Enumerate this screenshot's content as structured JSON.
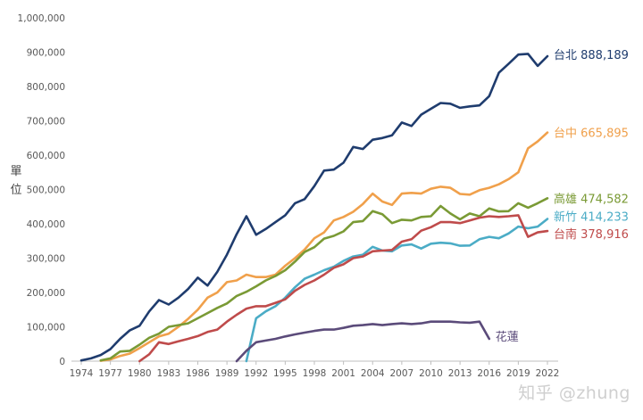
{
  "chart_data": {
    "type": "line",
    "title": "",
    "xlabel": "",
    "ylabel": "單位",
    "ylim": [
      0,
      1000000
    ],
    "yticks": [
      0,
      100000,
      200000,
      300000,
      400000,
      500000,
      600000,
      700000,
      800000,
      900000,
      1000000
    ],
    "xlim": [
      1974,
      2022
    ],
    "xticks": [
      1974,
      1977,
      1980,
      1983,
      1986,
      1989,
      1992,
      1995,
      1998,
      2001,
      2004,
      2007,
      2010,
      2013,
      2016,
      2019,
      2022
    ],
    "grid": false,
    "legend": "end-of-line labels",
    "series": [
      {
        "name": "台北",
        "end_label": "888,189",
        "color": "#1f3c6e",
        "points": [
          [
            1974,
            2000
          ],
          [
            1975,
            8000
          ],
          [
            1976,
            18000
          ],
          [
            1977,
            35000
          ],
          [
            1978,
            65000
          ],
          [
            1979,
            90000
          ],
          [
            1980,
            103000
          ],
          [
            1981,
            145000
          ],
          [
            1982,
            178000
          ],
          [
            1983,
            165000
          ],
          [
            1984,
            185000
          ],
          [
            1985,
            210000
          ],
          [
            1986,
            243000
          ],
          [
            1987,
            220000
          ],
          [
            1988,
            260000
          ],
          [
            1989,
            310000
          ],
          [
            1990,
            370000
          ],
          [
            1991,
            422000
          ],
          [
            1992,
            368000
          ],
          [
            1993,
            385000
          ],
          [
            1994,
            405000
          ],
          [
            1995,
            425000
          ],
          [
            1996,
            460000
          ],
          [
            1997,
            472000
          ],
          [
            1998,
            510000
          ],
          [
            1999,
            555000
          ],
          [
            2000,
            558000
          ],
          [
            2001,
            578000
          ],
          [
            2002,
            624000
          ],
          [
            2003,
            618000
          ],
          [
            2004,
            645000
          ],
          [
            2005,
            650000
          ],
          [
            2006,
            658000
          ],
          [
            2007,
            695000
          ],
          [
            2008,
            685000
          ],
          [
            2009,
            718000
          ],
          [
            2010,
            735000
          ],
          [
            2011,
            752000
          ],
          [
            2012,
            750000
          ],
          [
            2013,
            738000
          ],
          [
            2014,
            742000
          ],
          [
            2015,
            745000
          ],
          [
            2016,
            772000
          ],
          [
            2017,
            840000
          ],
          [
            2018,
            866000
          ],
          [
            2019,
            893000
          ],
          [
            2020,
            895000
          ],
          [
            2021,
            860000
          ],
          [
            2022,
            888189
          ]
        ]
      },
      {
        "name": "台中",
        "end_label": "665,895",
        "color": "#f0a04b",
        "points": [
          [
            1976,
            1000
          ],
          [
            1977,
            5000
          ],
          [
            1978,
            15000
          ],
          [
            1979,
            22000
          ],
          [
            1980,
            38000
          ],
          [
            1981,
            55000
          ],
          [
            1982,
            72000
          ],
          [
            1983,
            80000
          ],
          [
            1984,
            100000
          ],
          [
            1985,
            123000
          ],
          [
            1986,
            150000
          ],
          [
            1987,
            185000
          ],
          [
            1988,
            200000
          ],
          [
            1989,
            230000
          ],
          [
            1990,
            235000
          ],
          [
            1991,
            252000
          ],
          [
            1992,
            245000
          ],
          [
            1993,
            245000
          ],
          [
            1994,
            252000
          ],
          [
            1995,
            278000
          ],
          [
            1996,
            300000
          ],
          [
            1997,
            325000
          ],
          [
            1998,
            358000
          ],
          [
            1999,
            375000
          ],
          [
            2000,
            410000
          ],
          [
            2001,
            420000
          ],
          [
            2002,
            435000
          ],
          [
            2003,
            458000
          ],
          [
            2004,
            488000
          ],
          [
            2005,
            465000
          ],
          [
            2006,
            455000
          ],
          [
            2007,
            488000
          ],
          [
            2008,
            490000
          ],
          [
            2009,
            488000
          ],
          [
            2010,
            502000
          ],
          [
            2011,
            508000
          ],
          [
            2012,
            505000
          ],
          [
            2013,
            487000
          ],
          [
            2014,
            485000
          ],
          [
            2015,
            498000
          ],
          [
            2016,
            505000
          ],
          [
            2017,
            515000
          ],
          [
            2018,
            530000
          ],
          [
            2019,
            550000
          ],
          [
            2020,
            620000
          ],
          [
            2021,
            640000
          ],
          [
            2022,
            665895
          ]
        ]
      },
      {
        "name": "高雄",
        "end_label": "474,582",
        "color": "#7a9a35",
        "points": [
          [
            1976,
            2000
          ],
          [
            1977,
            8000
          ],
          [
            1978,
            28000
          ],
          [
            1979,
            30000
          ],
          [
            1980,
            48000
          ],
          [
            1981,
            68000
          ],
          [
            1982,
            80000
          ],
          [
            1983,
            100000
          ],
          [
            1984,
            105000
          ],
          [
            1985,
            110000
          ],
          [
            1986,
            125000
          ],
          [
            1987,
            140000
          ],
          [
            1988,
            155000
          ],
          [
            1989,
            168000
          ],
          [
            1990,
            190000
          ],
          [
            1991,
            202000
          ],
          [
            1992,
            218000
          ],
          [
            1993,
            235000
          ],
          [
            1994,
            248000
          ],
          [
            1995,
            265000
          ],
          [
            1996,
            290000
          ],
          [
            1997,
            318000
          ],
          [
            1998,
            332000
          ],
          [
            1999,
            357000
          ],
          [
            2000,
            365000
          ],
          [
            2001,
            378000
          ],
          [
            2002,
            405000
          ],
          [
            2003,
            408000
          ],
          [
            2004,
            437000
          ],
          [
            2005,
            428000
          ],
          [
            2006,
            402000
          ],
          [
            2007,
            412000
          ],
          [
            2008,
            410000
          ],
          [
            2009,
            420000
          ],
          [
            2010,
            422000
          ],
          [
            2011,
            452000
          ],
          [
            2012,
            430000
          ],
          [
            2013,
            413000
          ],
          [
            2014,
            430000
          ],
          [
            2015,
            422000
          ],
          [
            2016,
            445000
          ],
          [
            2017,
            436000
          ],
          [
            2018,
            437000
          ],
          [
            2019,
            460000
          ],
          [
            2020,
            447000
          ],
          [
            2021,
            460000
          ],
          [
            2022,
            474582
          ]
        ]
      },
      {
        "name": "新竹",
        "end_label": "414,233",
        "color": "#4bacc6",
        "points": [
          [
            1991,
            0
          ],
          [
            1992,
            125000
          ],
          [
            1993,
            145000
          ],
          [
            1994,
            160000
          ],
          [
            1995,
            185000
          ],
          [
            1996,
            215000
          ],
          [
            1997,
            240000
          ],
          [
            1998,
            252000
          ],
          [
            1999,
            265000
          ],
          [
            2000,
            275000
          ],
          [
            2001,
            292000
          ],
          [
            2002,
            305000
          ],
          [
            2003,
            310000
          ],
          [
            2004,
            333000
          ],
          [
            2005,
            322000
          ],
          [
            2006,
            320000
          ],
          [
            2007,
            337000
          ],
          [
            2008,
            340000
          ],
          [
            2009,
            328000
          ],
          [
            2010,
            342000
          ],
          [
            2011,
            345000
          ],
          [
            2012,
            343000
          ],
          [
            2013,
            336000
          ],
          [
            2014,
            337000
          ],
          [
            2015,
            355000
          ],
          [
            2016,
            362000
          ],
          [
            2017,
            358000
          ],
          [
            2018,
            372000
          ],
          [
            2019,
            392000
          ],
          [
            2020,
            387000
          ],
          [
            2021,
            392000
          ],
          [
            2022,
            414233
          ]
        ]
      },
      {
        "name": "台南",
        "end_label": "378,916",
        "color": "#bf4b4b",
        "points": [
          [
            1980,
            0
          ],
          [
            1981,
            20000
          ],
          [
            1982,
            55000
          ],
          [
            1983,
            50000
          ],
          [
            1984,
            58000
          ],
          [
            1985,
            65000
          ],
          [
            1986,
            73000
          ],
          [
            1987,
            85000
          ],
          [
            1988,
            92000
          ],
          [
            1989,
            115000
          ],
          [
            1990,
            135000
          ],
          [
            1991,
            153000
          ],
          [
            1992,
            160000
          ],
          [
            1993,
            160000
          ],
          [
            1994,
            170000
          ],
          [
            1995,
            180000
          ],
          [
            1996,
            205000
          ],
          [
            1997,
            222000
          ],
          [
            1998,
            235000
          ],
          [
            1999,
            252000
          ],
          [
            2000,
            272000
          ],
          [
            2001,
            282000
          ],
          [
            2002,
            300000
          ],
          [
            2003,
            305000
          ],
          [
            2004,
            320000
          ],
          [
            2005,
            322000
          ],
          [
            2006,
            324000
          ],
          [
            2007,
            348000
          ],
          [
            2008,
            355000
          ],
          [
            2009,
            380000
          ],
          [
            2010,
            390000
          ],
          [
            2011,
            405000
          ],
          [
            2012,
            405000
          ],
          [
            2013,
            402000
          ],
          [
            2014,
            410000
          ],
          [
            2015,
            418000
          ],
          [
            2016,
            422000
          ],
          [
            2017,
            420000
          ],
          [
            2018,
            422000
          ],
          [
            2019,
            425000
          ],
          [
            2020,
            362000
          ],
          [
            2021,
            375000
          ],
          [
            2022,
            378916
          ]
        ]
      },
      {
        "name": "花蓮",
        "end_label": "",
        "color": "#5b4b7a",
        "points": [
          [
            1990,
            0
          ],
          [
            1991,
            30000
          ],
          [
            1992,
            55000
          ],
          [
            1993,
            60000
          ],
          [
            1994,
            65000
          ],
          [
            1995,
            72000
          ],
          [
            1996,
            78000
          ],
          [
            1997,
            83000
          ],
          [
            1998,
            88000
          ],
          [
            1999,
            92000
          ],
          [
            2000,
            92000
          ],
          [
            2001,
            97000
          ],
          [
            2002,
            103000
          ],
          [
            2003,
            105000
          ],
          [
            2004,
            108000
          ],
          [
            2005,
            105000
          ],
          [
            2006,
            108000
          ],
          [
            2007,
            110000
          ],
          [
            2008,
            108000
          ],
          [
            2009,
            110000
          ],
          [
            2010,
            115000
          ],
          [
            2011,
            115000
          ],
          [
            2012,
            115000
          ],
          [
            2013,
            113000
          ],
          [
            2014,
            112000
          ],
          [
            2015,
            115000
          ],
          [
            2016,
            65000
          ]
        ]
      }
    ]
  },
  "watermark": "知乎 @zhung"
}
